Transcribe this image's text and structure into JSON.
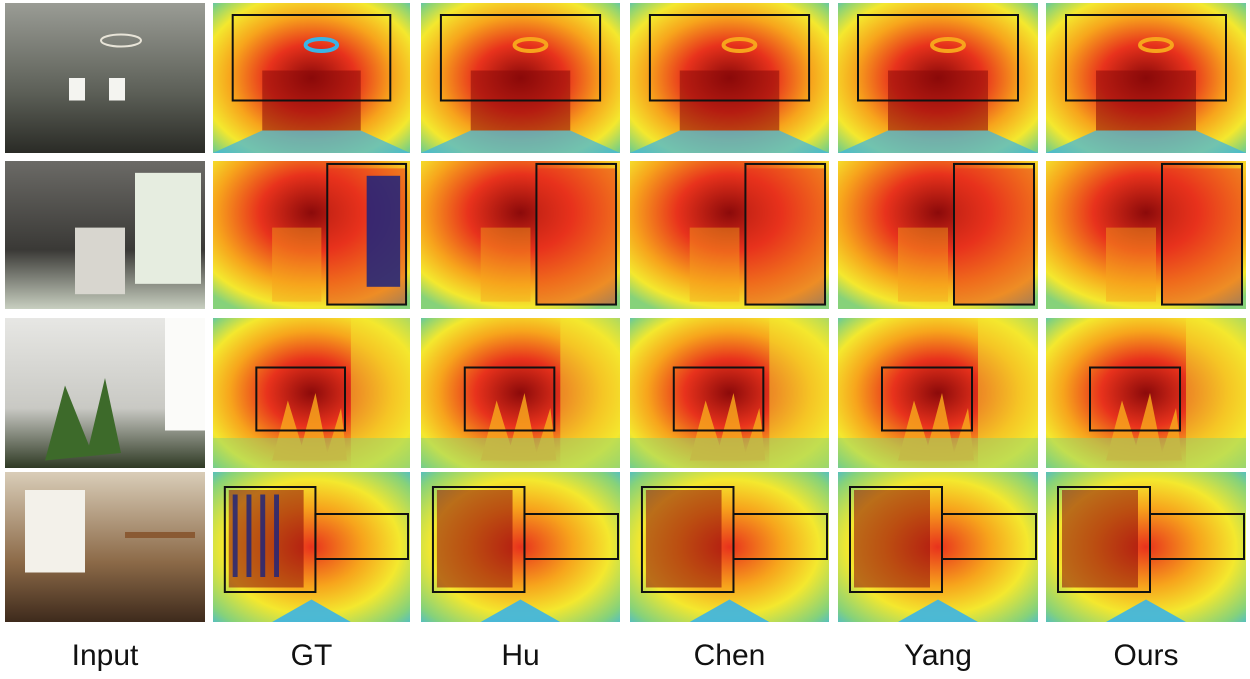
{
  "figure": {
    "columns": [
      {
        "key": "input",
        "label": "Input"
      },
      {
        "key": "gt",
        "label": "GT"
      },
      {
        "key": "hu",
        "label": "Hu"
      },
      {
        "key": "chen",
        "label": "Chen"
      },
      {
        "key": "yang",
        "label": "Yang"
      },
      {
        "key": "ours",
        "label": "Ours"
      }
    ],
    "rows": [
      {
        "scene": "hall-with-ring-lamps"
      },
      {
        "scene": "office-with-window-and-shelf"
      },
      {
        "scene": "corner-with-potted-plant"
      },
      {
        "scene": "room-with-window-and-wall-shelf"
      }
    ],
    "colormap": {
      "near": "#8b0a0a",
      "mid_near": "#e8321c",
      "mid": "#f7a41c",
      "mid_far": "#f4e82e",
      "far": "#86d27a",
      "farthest": "#3bb4e6",
      "invalid": "#1a237e",
      "box": "#111111"
    }
  }
}
